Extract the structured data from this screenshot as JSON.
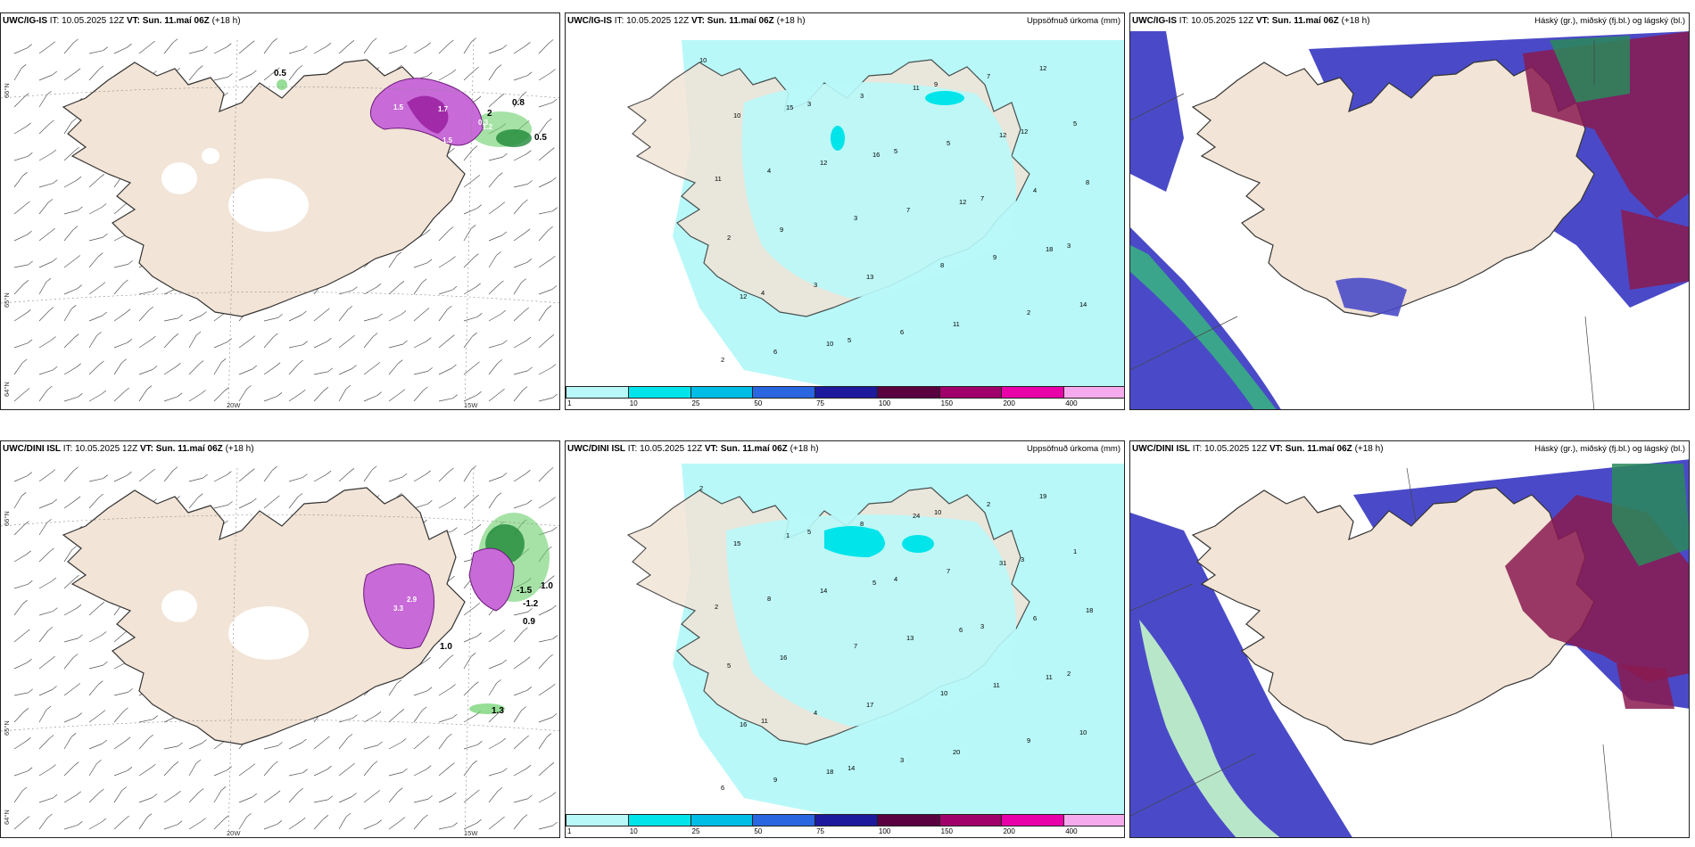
{
  "panels": {
    "igis_wind": {
      "model": "UWC/IG-IS",
      "it_label": "IT:",
      "it": "10.05.2025 12Z",
      "vt_label": "VT:",
      "vt": "Sun. 11.maí 06Z",
      "lead": "(+18 h)"
    },
    "igis_precip": {
      "model": "UWC/IG-IS",
      "it_label": "IT:",
      "it": "10.05.2025 12Z",
      "vt_label": "VT:",
      "vt": "Sun. 11.maí 06Z",
      "lead": "(+18 h)",
      "title": "Uppsöfnuð úrkoma (mm)"
    },
    "igis_cloud": {
      "model": "UWC/IG-IS",
      "it_label": "IT:",
      "it": "10.05.2025 12Z",
      "vt_label": "VT:",
      "vt": "Sun. 11.maí 06Z",
      "lead": "(+18 h)",
      "title": "Háský (gr.), miðský (fj.bl.) og lágský (bl.)"
    },
    "dini_wind": {
      "model": "UWC/DINI ISL",
      "it_label": "IT:",
      "it": "10.05.2025 12Z",
      "vt_label": "VT:",
      "vt": "Sun. 11.maí 06Z",
      "lead": "(+18 h)"
    },
    "dini_precip": {
      "model": "UWC/DINI ISL",
      "it_label": "IT:",
      "it": "10.05.2025 12Z",
      "vt_label": "VT:",
      "vt": "Sun. 11.maí 06Z",
      "lead": "(+18 h)",
      "title": "Uppsöfnuð úrkoma (mm)"
    },
    "dini_cloud": {
      "model": "UWC/DINI ISL",
      "it_label": "IT:",
      "it": "10.05.2025 12Z",
      "vt_label": "VT:",
      "vt": "Sun. 11.maí 06Z",
      "lead": "(+18 h)",
      "title": "Háský (gr.), miðský (fj.bl.) og lágský (bl.)"
    }
  },
  "grid_labels": {
    "lat66": "66°N",
    "lat65": "65°N",
    "lat64": "64°N",
    "lon20": "20W",
    "lon15": "15W"
  },
  "colorbar": {
    "labels": [
      "1",
      "10",
      "25",
      "50",
      "75",
      "100",
      "150",
      "200",
      "400"
    ],
    "colors": [
      "#b9f8f8",
      "#00e4ea",
      "#00bde6",
      "#2a66e0",
      "#1d1a9e",
      "#5a0040",
      "#a0006a",
      "#e800a8",
      "#f6aaee"
    ]
  },
  "igis_wind_values": [
    "0.5",
    "0.8",
    "0.5",
    "2",
    "1.2",
    "0.3",
    "1.5",
    "1.7",
    "1.5"
  ],
  "dini_wind_values": [
    "-1.5",
    "-1.2",
    "1.0",
    "0.9",
    "1.0",
    "3.3",
    "2.9",
    "1.3"
  ],
  "igis_precip_numbers": [
    "10",
    "15",
    "16",
    "12",
    "18",
    "12",
    "10",
    "11",
    "12",
    "8",
    "9",
    "13",
    "11",
    "12",
    "10",
    "12",
    "7",
    "9",
    "14",
    "6",
    "3",
    "5",
    "4",
    "2",
    "3",
    "6",
    "7",
    "5",
    "4",
    "3",
    "8",
    "2",
    "2",
    "3",
    "5",
    "7",
    "3",
    "4",
    "5",
    "9",
    "12",
    "11"
  ],
  "dini_precip_numbers": [
    "2",
    "1",
    "5",
    "6",
    "11",
    "16",
    "18",
    "24",
    "31",
    "18",
    "16",
    "17",
    "20",
    "19",
    "15",
    "14",
    "13",
    "11",
    "10",
    "9",
    "8",
    "7",
    "6",
    "5",
    "4",
    "3",
    "2",
    "1",
    "8",
    "7",
    "10",
    "9",
    "6",
    "5",
    "4",
    "3",
    "2",
    "11",
    "14",
    "10",
    "3",
    "2"
  ],
  "colors": {
    "land": "#f2e4d6",
    "sea": "#ffffff",
    "precip_light": "#b9f8f8",
    "low_cloud": "#4a4ac8",
    "mid_cloud": "#8a1a50",
    "high_cloud": "#2a8a5a"
  }
}
